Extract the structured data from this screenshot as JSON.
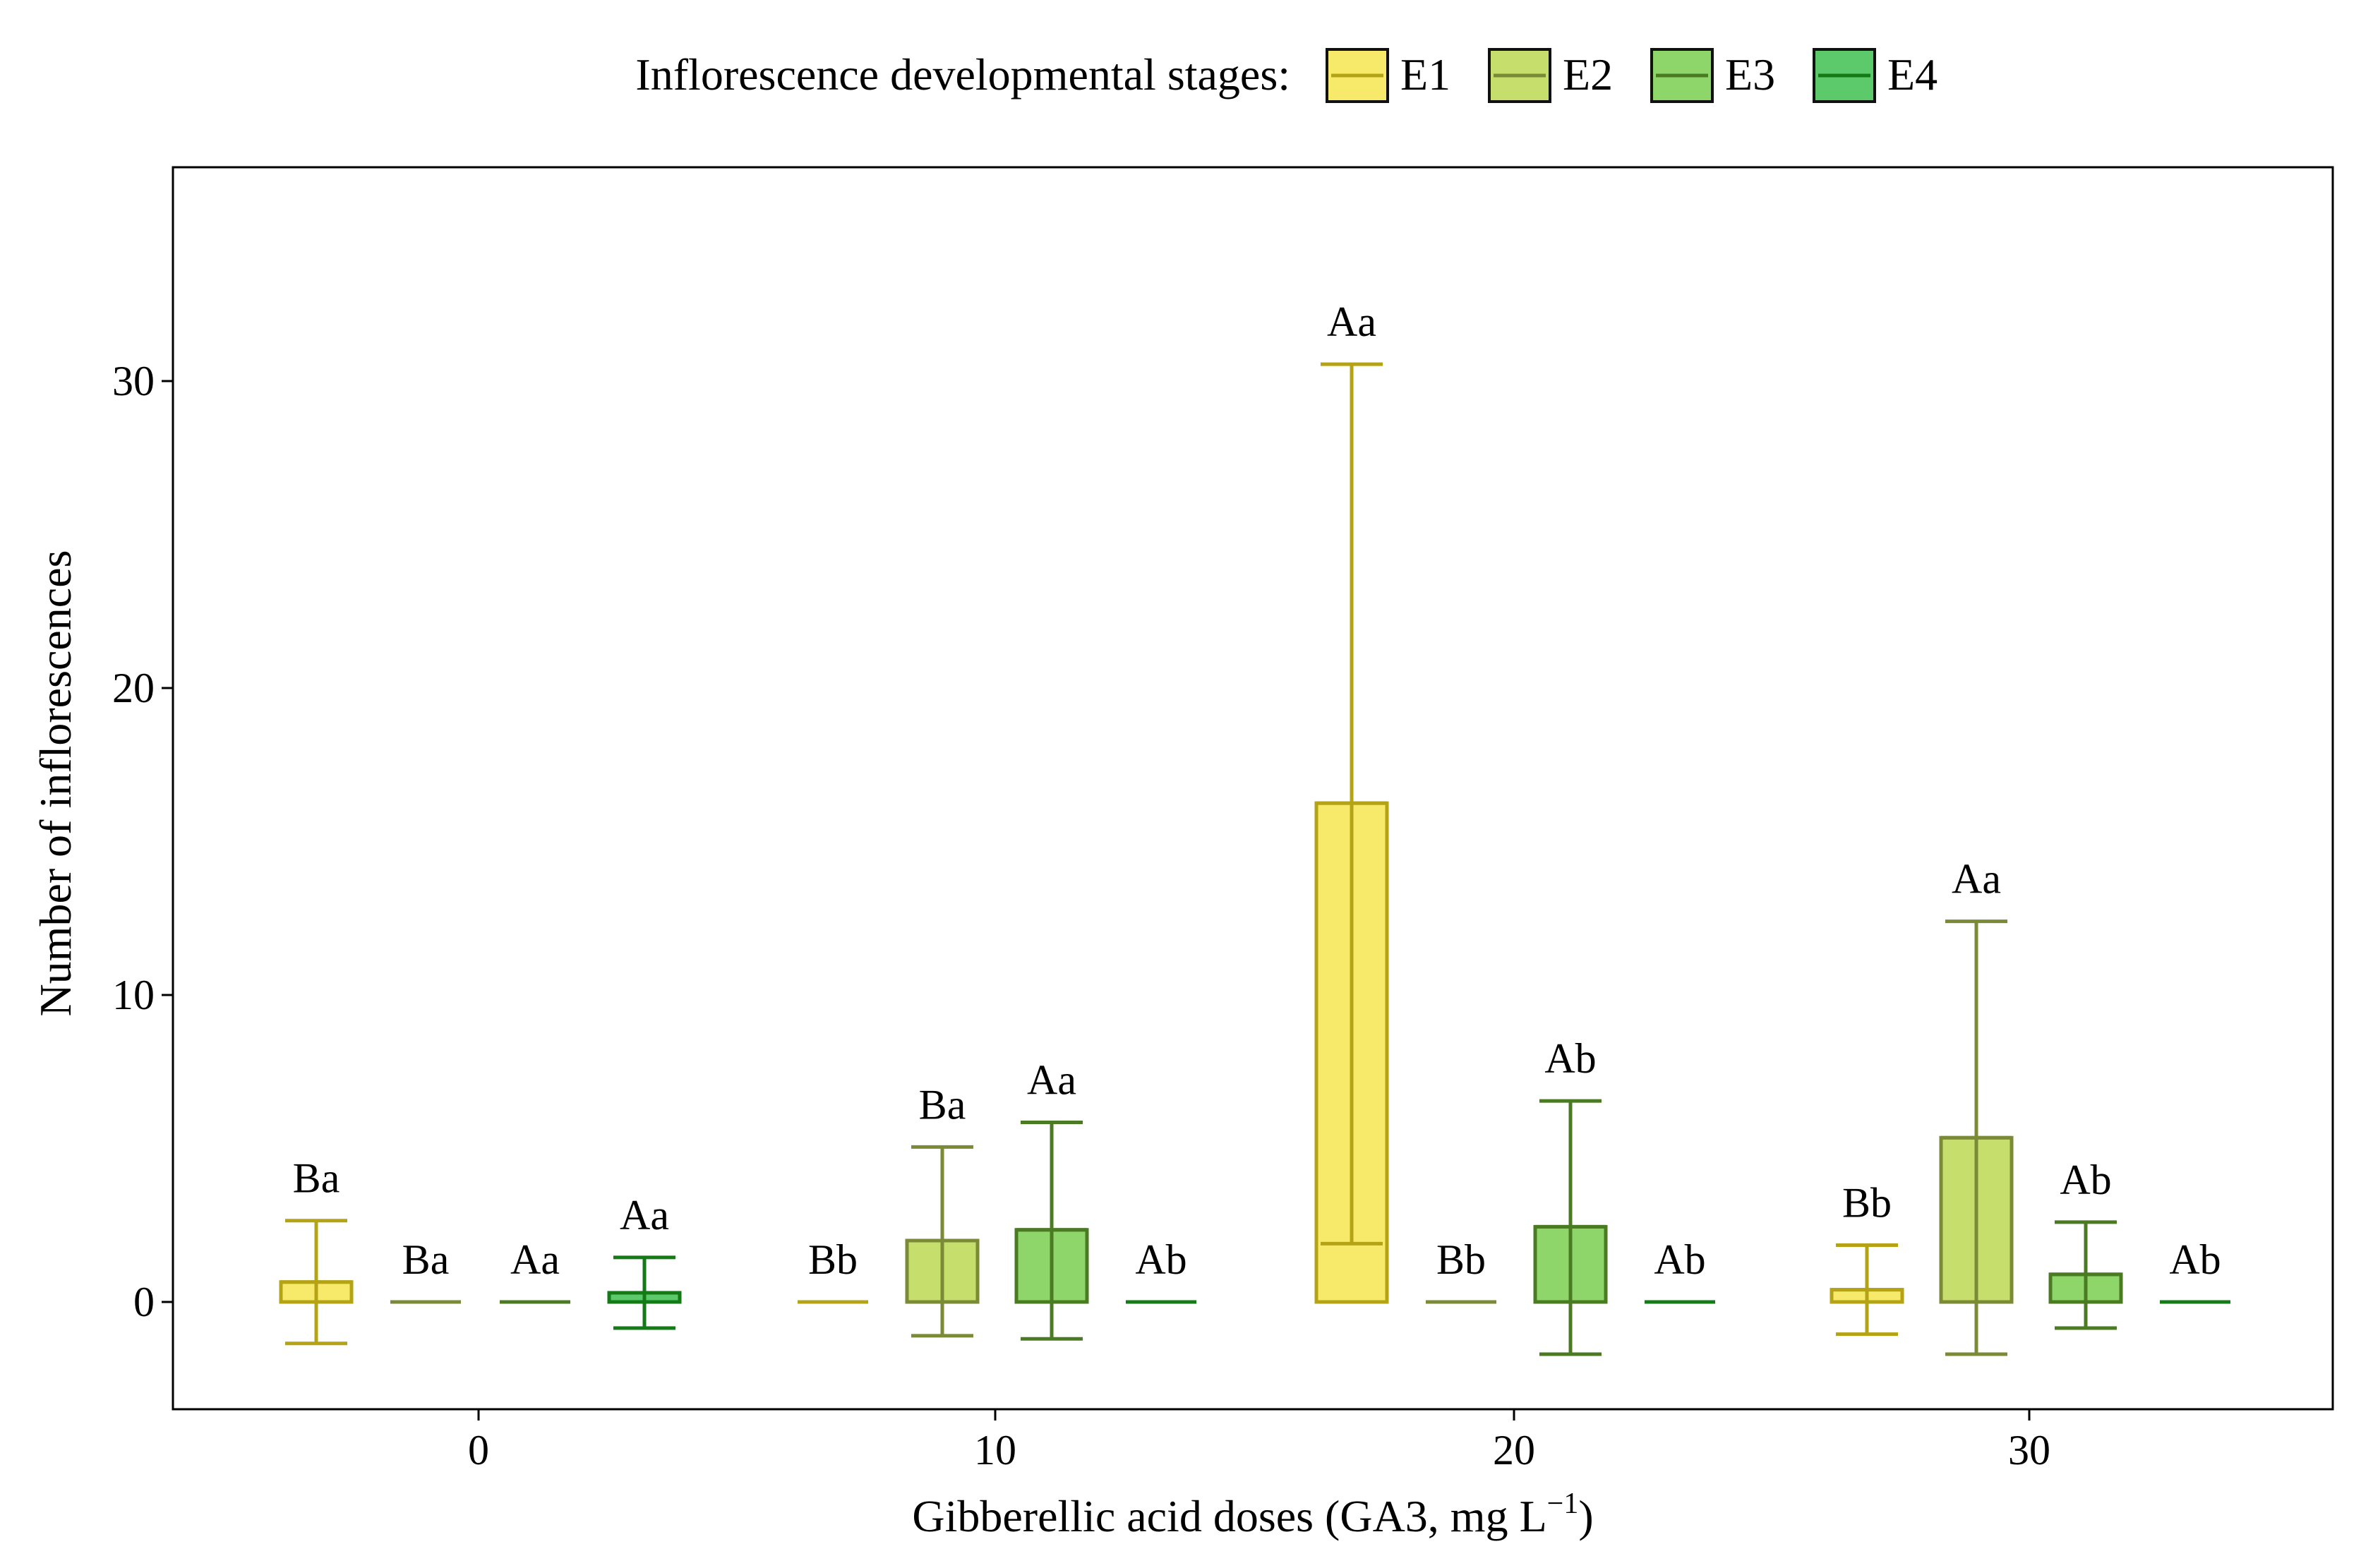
{
  "chart_data": {
    "type": "bar",
    "xlabel": "Gibberellic acid doses (GA3, mg L",
    "xlabel_sup": "−1",
    "xlabel_suffix": ")",
    "ylabel": "Number of inflorescences",
    "categories": [
      "0",
      "10",
      "20",
      "30"
    ],
    "y_ticks": [
      "0",
      "10",
      "20",
      "30"
    ],
    "ylim": [
      -3.5,
      36.5
    ],
    "grid": false,
    "legend": {
      "title": "Inflorescence developmental stages:",
      "position": "top"
    },
    "series": [
      {
        "name": "E1",
        "fill": "#f7e96a",
        "stroke": "#b5a316",
        "values": [
          0.65,
          0,
          16.25,
          0.4
        ],
        "err_low": [
          -1.35,
          0,
          1.9,
          -1.05
        ],
        "err_high": [
          2.65,
          0,
          30.55,
          1.85
        ],
        "labels": [
          "Ba",
          "Bb",
          "Aa",
          "Bb"
        ]
      },
      {
        "name": "E2",
        "fill": "#c6de6c",
        "stroke": "#7a8a36",
        "values": [
          0,
          2.0,
          0,
          5.35
        ],
        "err_low": [
          0,
          -1.1,
          0,
          -1.7
        ],
        "err_high": [
          0,
          5.05,
          0,
          12.4
        ],
        "labels": [
          "Ba",
          "Ba",
          "Bb",
          "Aa"
        ]
      },
      {
        "name": "E3",
        "fill": "#8ed56a",
        "stroke": "#4a7a22",
        "values": [
          0,
          2.35,
          2.45,
          0.9
        ],
        "err_low": [
          0,
          -1.2,
          -1.7,
          -0.85
        ],
        "err_high": [
          0,
          5.85,
          6.55,
          2.6
        ],
        "labels": [
          "Aa",
          "Aa",
          "Ab",
          "Ab"
        ]
      },
      {
        "name": "E4",
        "fill": "#5cc96a",
        "stroke": "#137a16",
        "values": [
          0.3,
          0,
          0,
          0
        ],
        "err_low": [
          -0.85,
          0,
          0,
          0
        ],
        "err_high": [
          1.45,
          0,
          0,
          0
        ],
        "labels": [
          "Aa",
          "Ab",
          "Ab",
          "Ab"
        ]
      }
    ]
  }
}
